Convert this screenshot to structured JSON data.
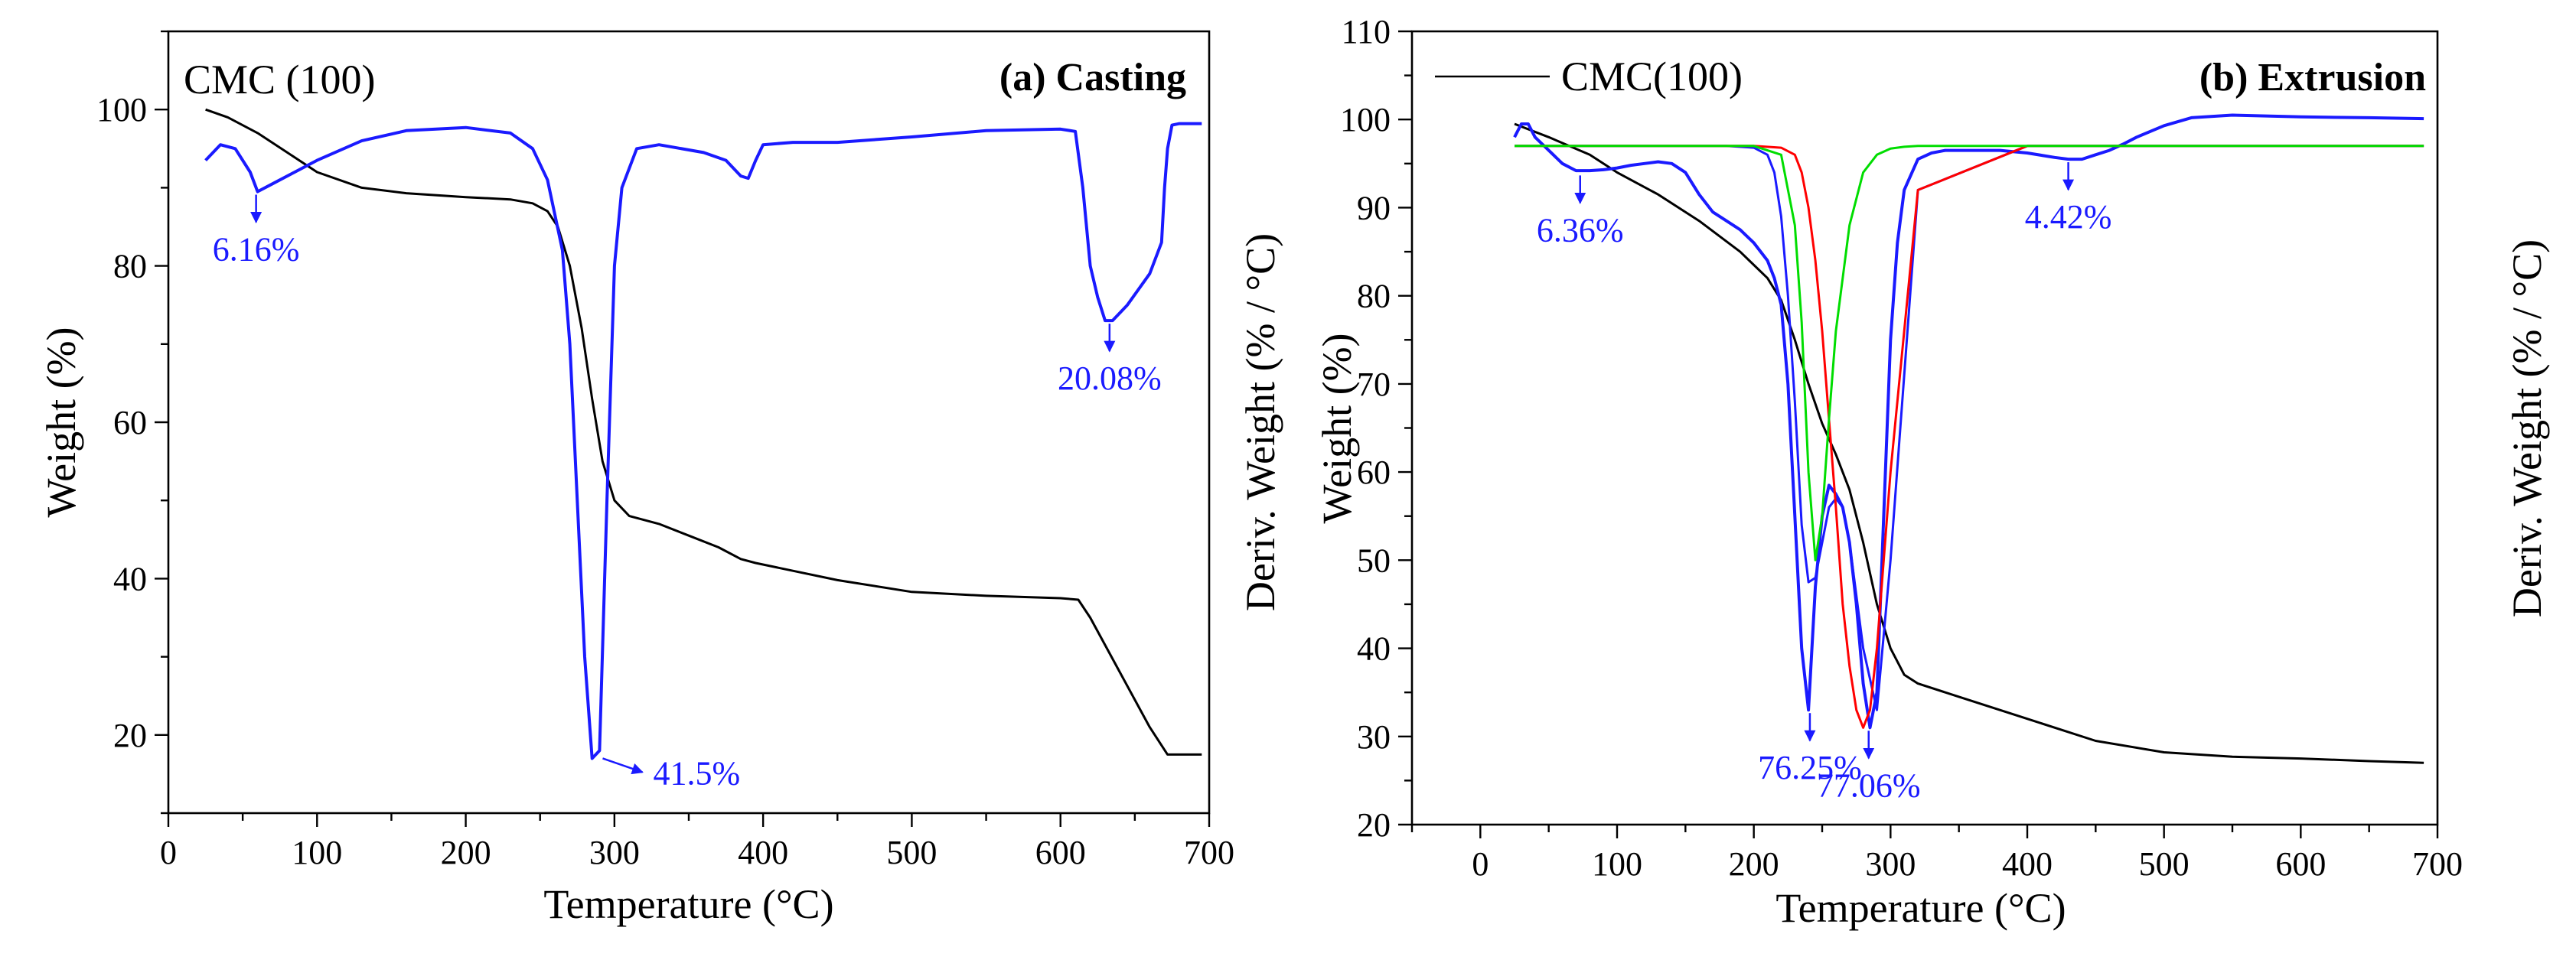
{
  "chart_data": [
    {
      "type": "line",
      "panel": "a",
      "title": "(a) Casting",
      "legend_label": "CMC (100)",
      "xlabel": "Temperature (°C)",
      "ylabel": "Weight (%)",
      "ylabel_right": "Deriv. Weight (% / °C)",
      "xlim": [
        0,
        700
      ],
      "ylim": [
        10,
        110
      ],
      "xticks": [
        0,
        100,
        200,
        300,
        400,
        500,
        600,
        700
      ],
      "yticks": [
        20,
        40,
        60,
        80,
        100
      ],
      "colors": {
        "weight": "#000000",
        "deriv": "#1a1aff"
      },
      "series": [
        {
          "name": "Weight",
          "color": "#000000",
          "x": [
            25,
            40,
            60,
            80,
            100,
            130,
            160,
            200,
            230,
            245,
            255,
            262,
            270,
            278,
            285,
            292,
            300,
            310,
            330,
            350,
            370,
            385,
            395,
            420,
            450,
            500,
            550,
            600,
            612,
            620,
            640,
            660,
            672,
            690,
            695
          ],
          "y": [
            100,
            99,
            97,
            94.5,
            92,
            90,
            89.3,
            88.8,
            88.5,
            88,
            87,
            85,
            80,
            72,
            63,
            55,
            50,
            48,
            47,
            45.5,
            44,
            42.5,
            42,
            41,
            39.8,
            38.3,
            37.8,
            37.5,
            37.3,
            35,
            28,
            21,
            17.5,
            17.5,
            17.5
          ]
        },
        {
          "name": "Deriv. Weight",
          "color": "#1a1aff",
          "x": [
            25,
            35,
            45,
            55,
            60,
            70,
            85,
            100,
            130,
            160,
            200,
            230,
            245,
            255,
            265,
            270,
            275,
            280,
            285,
            290,
            295,
            300,
            305,
            315,
            330,
            360,
            375,
            385,
            390,
            395,
            400,
            420,
            450,
            500,
            550,
            600,
            610,
            615,
            620,
            625,
            630,
            635,
            645,
            660,
            668,
            670,
            672,
            675,
            680,
            695
          ],
          "y": [
            93.5,
            95.5,
            95,
            92,
            89.5,
            90.5,
            92,
            93.5,
            96,
            97.3,
            97.7,
            97,
            95,
            91,
            82,
            70,
            50,
            30,
            17,
            18,
            50,
            80,
            90,
            95,
            95.5,
            94.5,
            93.5,
            91.5,
            91.2,
            93.5,
            95.5,
            95.8,
            95.8,
            96.5,
            97.3,
            97.5,
            97.2,
            90,
            80,
            76,
            73,
            73,
            75,
            79,
            83,
            90,
            95,
            98,
            98.2,
            98.2
          ]
        }
      ],
      "annotations": [
        {
          "text": "6.16%",
          "x": 59,
          "y": 89.5
        },
        {
          "text": "41.5%",
          "x": 289,
          "y": 17
        },
        {
          "text": "20.08%",
          "x": 633,
          "y": 73
        }
      ]
    },
    {
      "type": "line",
      "panel": "b",
      "title": "(b) Extrusion",
      "legend_label": "CMC(100)",
      "xlabel": "Temperature (°C)",
      "ylabel": "Weight (%)",
      "ylabel_right": "Deriv. Weight (% / °C)",
      "xlim": [
        -50,
        700
      ],
      "ylim": [
        20,
        110
      ],
      "xticks": [
        0,
        100,
        200,
        300,
        400,
        500,
        600,
        700
      ],
      "yticks": [
        20,
        30,
        40,
        50,
        60,
        70,
        80,
        90,
        100,
        110
      ],
      "colors": {
        "weight": "#000000",
        "deriv": "#1a1aff",
        "fit1": "#1a1aff",
        "fit2": "#ff0000",
        "fit3": "#00dd00"
      },
      "series": [
        {
          "name": "Weight",
          "color": "#000000",
          "x": [
            25,
            50,
            80,
            100,
            130,
            160,
            190,
            210,
            220,
            230,
            240,
            250,
            260,
            270,
            280,
            290,
            300,
            310,
            320,
            350,
            400,
            450,
            500,
            550,
            600,
            650,
            690
          ],
          "y": [
            99.5,
            98,
            96,
            94,
            91.5,
            88.5,
            85,
            82,
            79.5,
            75,
            70,
            65.5,
            62,
            58,
            52,
            45,
            40,
            37,
            36,
            34.5,
            32,
            29.5,
            28.2,
            27.7,
            27.5,
            27.2,
            27
          ]
        },
        {
          "name": "Deriv. Weight",
          "color": "#1a1aff",
          "x": [
            25,
            30,
            35,
            40,
            50,
            60,
            70,
            80,
            90,
            100,
            110,
            120,
            130,
            140,
            150,
            160,
            170,
            180,
            190,
            200,
            210,
            215,
            220,
            225,
            230,
            235,
            240,
            245,
            250,
            255,
            260,
            265,
            270,
            275,
            280,
            285,
            290,
            295,
            300,
            305,
            310,
            320,
            330,
            340,
            360,
            380,
            400,
            420,
            430,
            440,
            450,
            460,
            470,
            480,
            500,
            520,
            550,
            600,
            650,
            690
          ],
          "y": [
            98,
            99.5,
            99.5,
            98,
            96.5,
            95,
            94.2,
            94.2,
            94.3,
            94.5,
            94.8,
            95,
            95.2,
            95,
            94,
            91.5,
            89.5,
            88.5,
            87.5,
            86,
            84,
            82,
            79,
            70,
            55,
            40,
            33,
            47,
            55,
            58.5,
            57.5,
            56,
            52,
            45,
            36,
            31,
            35,
            55,
            75,
            86,
            92,
            95.5,
            96.2,
            96.5,
            96.5,
            96.5,
            96.2,
            95.7,
            95.5,
            95.5,
            96,
            96.5,
            97.2,
            98,
            99.3,
            100.2,
            100.5,
            100.3,
            100.2,
            100.1
          ]
        },
        {
          "name": "Fit peak 1",
          "color": "#1a1aff",
          "x": [
            25,
            180,
            200,
            210,
            215,
            220,
            225,
            230,
            235,
            240,
            245,
            250,
            255,
            260,
            265,
            270,
            280,
            290,
            300,
            320,
            400,
            500,
            600,
            690
          ],
          "y": [
            97,
            97,
            96.8,
            96,
            94,
            89,
            80,
            68,
            54,
            47.5,
            48,
            52,
            56,
            57,
            56,
            52,
            40,
            33,
            50,
            92,
            97,
            97,
            97,
            97
          ]
        },
        {
          "name": "Fit peak 2",
          "color": "#ff0000",
          "x": [
            25,
            200,
            220,
            230,
            235,
            240,
            245,
            250,
            255,
            260,
            265,
            270,
            275,
            280,
            285,
            290,
            300,
            320,
            400,
            690
          ],
          "y": [
            97,
            97,
            96.8,
            96,
            94,
            90,
            84,
            76,
            66,
            56,
            45,
            38,
            33,
            31,
            33,
            40,
            60,
            92,
            97,
            97
          ]
        },
        {
          "name": "Fit peak 3",
          "color": "#00dd00",
          "x": [
            25,
            200,
            220,
            230,
            235,
            240,
            245,
            250,
            255,
            260,
            270,
            280,
            290,
            300,
            310,
            320,
            340,
            400,
            690
          ],
          "y": [
            97,
            97,
            96,
            88,
            77,
            60,
            50,
            55,
            66,
            76,
            88,
            94,
            96,
            96.7,
            96.9,
            97,
            97,
            97,
            97
          ]
        }
      ],
      "annotations": [
        {
          "text": "6.36%",
          "x": 73,
          "y": 94
        },
        {
          "text": "76.25%",
          "x": 241,
          "y": 33
        },
        {
          "text": "77.06%",
          "x": 284,
          "y": 31
        },
        {
          "text": "4.42%",
          "x": 430,
          "y": 95.5
        }
      ]
    }
  ]
}
